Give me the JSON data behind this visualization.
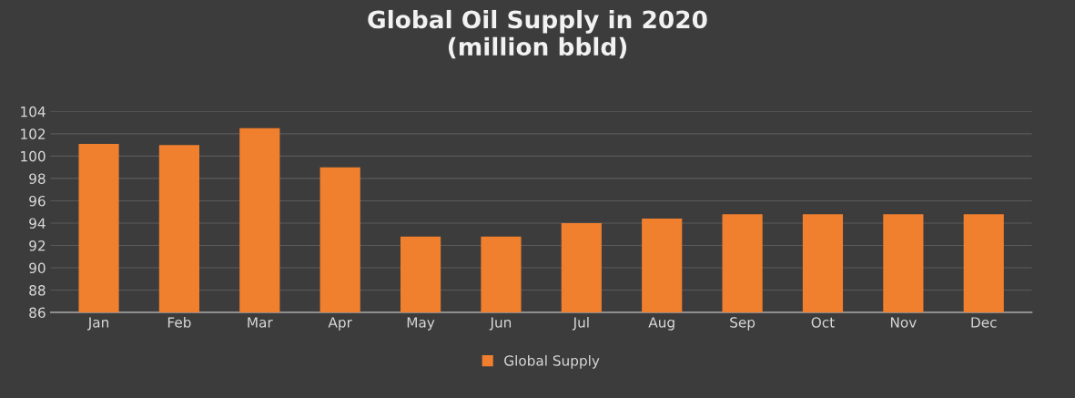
{
  "chart_data": {
    "type": "bar",
    "title": "Global Oil Supply in 2020\n(million bbld)",
    "categories": [
      "Jan",
      "Feb",
      "Mar",
      "Apr",
      "May",
      "Jun",
      "Jul",
      "Aug",
      "Sep",
      "Oct",
      "Nov",
      "Dec"
    ],
    "series": [
      {
        "name": "Global Supply",
        "color": "#f07f2e",
        "values": [
          101.1,
          101.0,
          102.5,
          99.0,
          92.8,
          92.8,
          94.0,
          94.4,
          94.8,
          94.8,
          94.8,
          94.8
        ]
      }
    ],
    "ylim": [
      86,
      104
    ],
    "yticks": [
      86,
      88,
      90,
      92,
      94,
      96,
      98,
      100,
      102,
      104
    ],
    "grid": "y",
    "legend": "bottom"
  }
}
